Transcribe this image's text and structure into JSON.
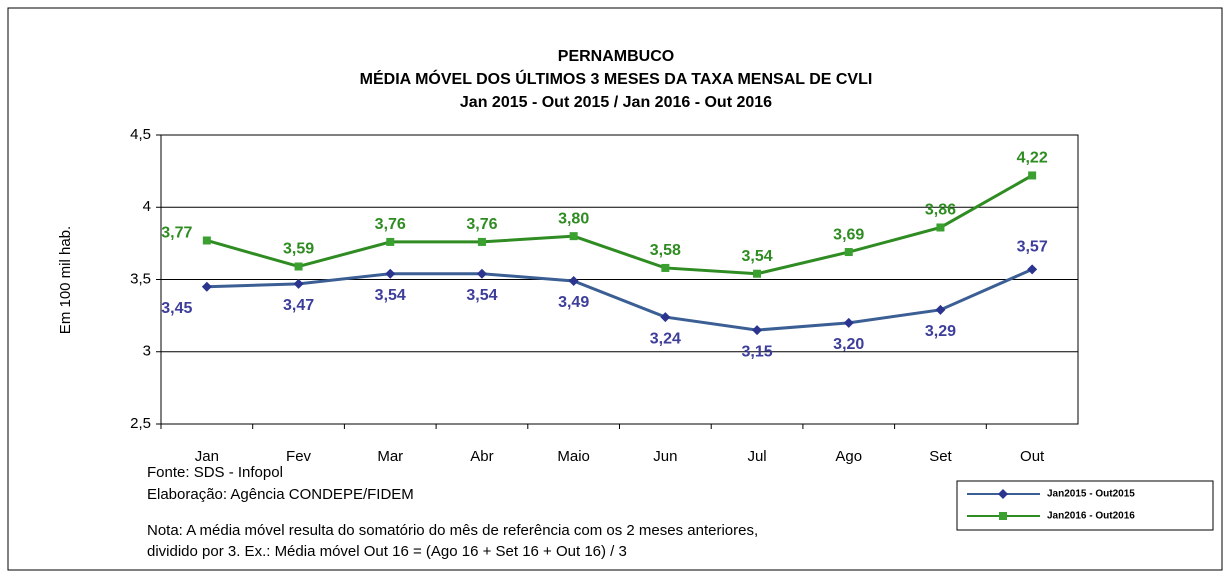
{
  "chart_data": {
    "type": "line",
    "title": [
      "PERNAMBUCO",
      "MÉDIA MÓVEL DOS ÚLTIMOS 3 MESES DA TAXA MENSAL DE CVLI",
      "Jan 2015 - Out 2015 / Jan 2016 - Out 2016"
    ],
    "y_label": "Em 100 mil hab.",
    "categories": [
      "Jan",
      "Fev",
      "Mar",
      "Abr",
      "Maio",
      "Jun",
      "Jul",
      "Ago",
      "Set",
      "Out"
    ],
    "series": [
      {
        "name": "Jan2015 - Out2015",
        "color": "#3b5f94",
        "marker_color": "#2b3590",
        "label_color": "#3d3d9a",
        "marker": "diamond",
        "values": [
          3.45,
          3.47,
          3.54,
          3.54,
          3.49,
          3.24,
          3.15,
          3.2,
          3.29,
          3.57
        ],
        "value_labels": [
          "3,45",
          "3,47",
          "3,54",
          "3,54",
          "3,49",
          "3,24",
          "3,15",
          "3,20",
          "3,29",
          "3,57"
        ]
      },
      {
        "name": "Jan2016 - Out2016",
        "color": "#2f8c22",
        "marker_color": "#3aa030",
        "label_color": "#2f8c22",
        "marker": "square",
        "values": [
          3.77,
          3.59,
          3.76,
          3.76,
          3.8,
          3.58,
          3.54,
          3.69,
          3.86,
          4.22
        ],
        "value_labels": [
          "3,77",
          "3,59",
          "3,76",
          "3,76",
          "3,80",
          "3,58",
          "3,54",
          "3,69",
          "3,86",
          "4,22"
        ]
      }
    ],
    "ylim": [
      2.5,
      4.5
    ],
    "yticks": [
      {
        "value": 2.5,
        "label": "2,5"
      },
      3,
      {
        "value": 3.5,
        "label": "3,5"
      },
      4,
      {
        "value": 4.5,
        "label": "4,5"
      }
    ],
    "grid": true,
    "notes": [
      "Fonte: SDS - Infopol",
      "Elaboração: Agência CONDEPE/FIDEM",
      "Nota: A média móvel resulta do somatório do mês de referência com os 2 meses anteriores,",
      "dividido por 3. Ex.: Média móvel Out 16 = (Ago 16 + Set 16 + Out 16) / 3"
    ]
  }
}
